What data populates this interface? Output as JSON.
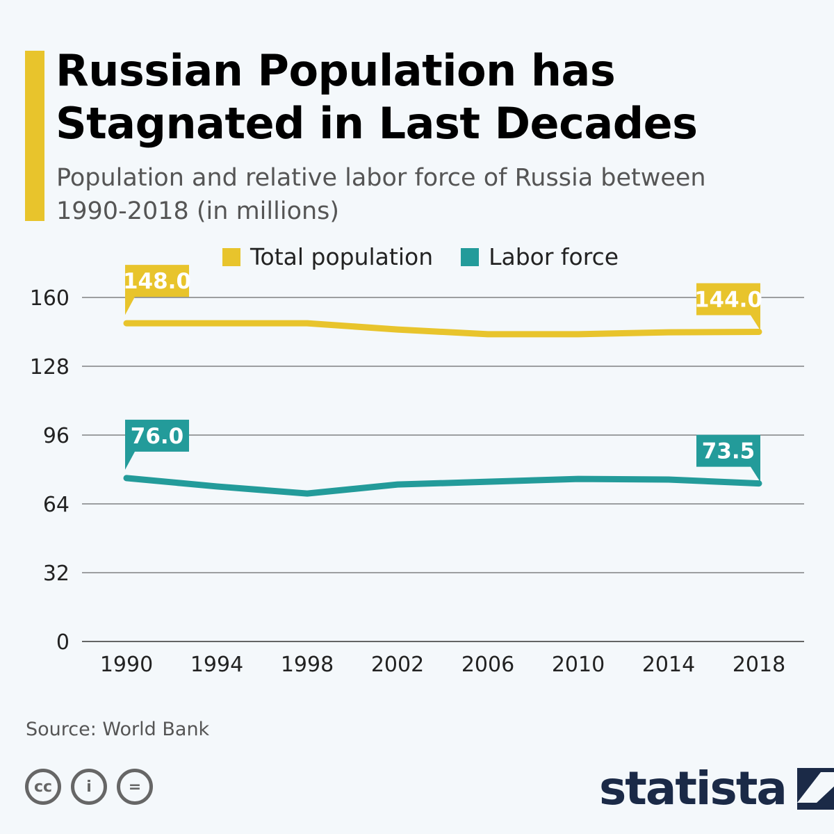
{
  "header": {
    "title": "Russian Population has Stagnated in Last Decades",
    "subtitle": "Population and relative labor force of Russia between 1990-2018 (in millions)"
  },
  "footer": {
    "source": "Source: World Bank",
    "brand": "statista",
    "license_icons": [
      "cc-icon",
      "attribution-icon",
      "no-derivatives-icon"
    ]
  },
  "chart_data": {
    "type": "line",
    "title": "Russian Population has Stagnated in Last Decades",
    "subtitle": "Population and relative labor force of Russia between 1990-2018 (in millions)",
    "x": [
      1990,
      1994,
      1998,
      2002,
      2006,
      2010,
      2014,
      2018
    ],
    "x_tick_labels": [
      "1990",
      "1994",
      "1998",
      "2002",
      "2006",
      "2010",
      "2014",
      "2018"
    ],
    "y_ticks": [
      0,
      32,
      64,
      96,
      128,
      160
    ],
    "y_tick_labels": [
      "0",
      "32",
      "64",
      "96",
      "128",
      "160"
    ],
    "ylim": [
      0,
      160
    ],
    "grid": "horizontal",
    "legend": "top",
    "series": [
      {
        "name": "Total population",
        "color": "#e8c42c",
        "values": [
          148.0,
          148.0,
          148.0,
          145.1,
          142.9,
          142.9,
          143.8,
          144.0
        ],
        "labels": {
          "first": "148.0",
          "last": "144.0"
        }
      },
      {
        "name": "Labor force",
        "color": "#239b9a",
        "values": [
          76.0,
          72.1,
          68.8,
          73.0,
          74.3,
          75.6,
          75.3,
          73.5
        ],
        "labels": {
          "first": "76.0",
          "last": "73.5"
        }
      }
    ]
  }
}
